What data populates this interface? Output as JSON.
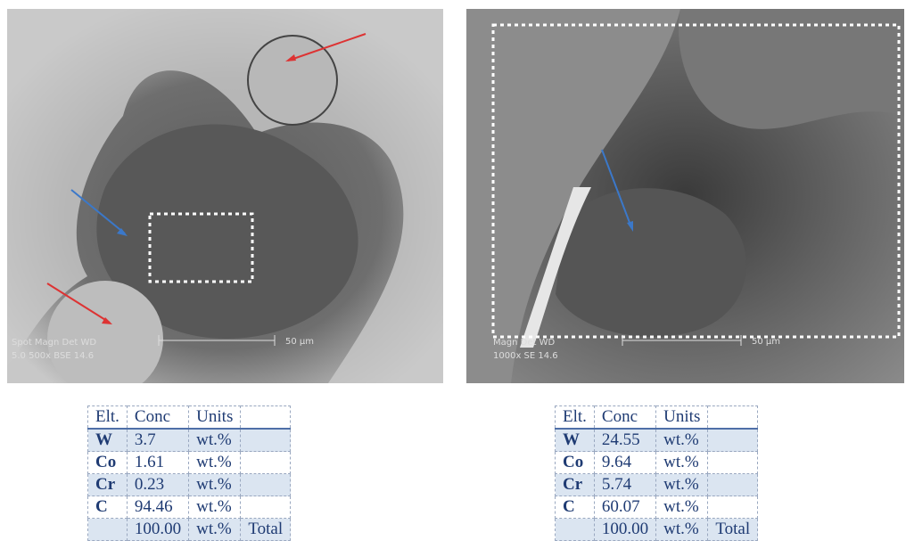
{
  "panels": [
    {
      "image": {
        "scale_bar": "50 µm",
        "info_header": "Spot Magn   Det   WD",
        "info_values": "5.0   500x   BSE   14.6"
      },
      "table": {
        "header": [
          "Elt.",
          "Conc",
          "Units"
        ],
        "rows": [
          [
            "W",
            "3.7",
            "wt.%"
          ],
          [
            "Co",
            "1.61",
            "wt.%"
          ],
          [
            "Cr",
            "0.23",
            "wt.%"
          ],
          [
            "C",
            "94.46",
            "wt.%"
          ]
        ],
        "total": {
          "conc": "100.00",
          "units": "wt.%",
          "label": "Total"
        }
      }
    },
    {
      "image": {
        "scale_bar": "50 µm",
        "info_header": "Magn   Det   WD",
        "info_values": "1000x   SE   14.6"
      },
      "table": {
        "header": [
          "Elt.",
          "Conc",
          "Units"
        ],
        "rows": [
          [
            "W",
            "24.55",
            "wt.%"
          ],
          [
            "Co",
            "9.64",
            "wt.%"
          ],
          [
            "Cr",
            "5.74",
            "wt.%"
          ],
          [
            "C",
            "60.07",
            "wt.%"
          ]
        ],
        "total": {
          "conc": "100.00",
          "units": "wt.%",
          "label": "Total"
        }
      }
    }
  ]
}
